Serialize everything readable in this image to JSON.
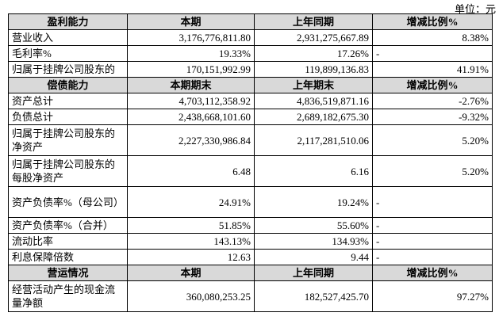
{
  "unit": "单位：元",
  "sections": [
    {
      "header": [
        "盈利能力",
        "本期",
        "上年同期",
        "增减比例%"
      ],
      "rows": [
        [
          "营业收入",
          "3,176,776,811.80",
          "2,931,275,667.89",
          "8.38%"
        ],
        [
          "毛利率%",
          "19.33%",
          "17.26%",
          "-"
        ],
        [
          "归属于挂牌公司股东的",
          "170,151,992.99",
          "119,899,136.83",
          "41.91%"
        ]
      ]
    },
    {
      "header": [
        "偿债能力",
        "本期期末",
        "上年期末",
        "增减比例%"
      ],
      "rows": [
        [
          "资产总计",
          "4,703,112,358.92",
          "4,836,519,871.16",
          "-2.76%"
        ],
        [
          "负债总计",
          "2,438,668,101.60",
          "2,689,182,675.30",
          "-9.32%"
        ],
        [
          "归属于挂牌公司股东的净资产",
          "2,227,330,986.84",
          "2,117,281,510.06",
          "5.20%"
        ],
        [
          "归属于挂牌公司股东的每股净资产",
          "6.48",
          "6.16",
          "5.20%"
        ],
        [
          "资产负债率%（母公司）",
          "24.91%",
          "19.24%",
          "-"
        ],
        [
          "资产负债率%（合并）",
          "51.85%",
          "55.60%",
          "-"
        ],
        [
          "流动比率",
          "143.13%",
          "134.93%",
          "-"
        ],
        [
          "利息保障倍数",
          "12.63",
          "9.44",
          "-"
        ]
      ]
    },
    {
      "header": [
        "营运情况",
        "本期",
        "上年同期",
        "增减比例%"
      ],
      "rows": [
        [
          "经营活动产生的现金流量净额",
          "360,080,253.25",
          "182,527,425.70",
          "97.27%"
        ]
      ]
    }
  ]
}
